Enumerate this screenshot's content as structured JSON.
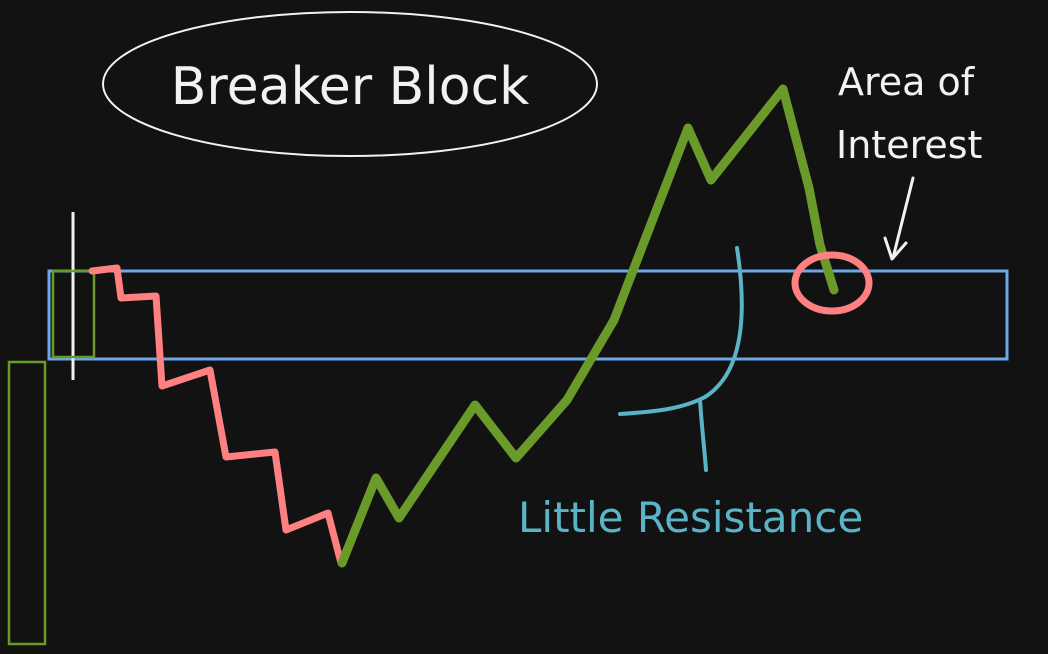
{
  "diagram": {
    "title": "Breaker Block",
    "annotation_area": [
      "Area of",
      "Interest"
    ],
    "annotation_resistance": "Little Resistance"
  },
  "colors": {
    "background": "#121212",
    "ink": "#f2f2f2",
    "bullish": "#6a9a2a",
    "bearish": "#ff8080",
    "zone": "#6aa8ea",
    "resistance": "#5ab4c8"
  }
}
